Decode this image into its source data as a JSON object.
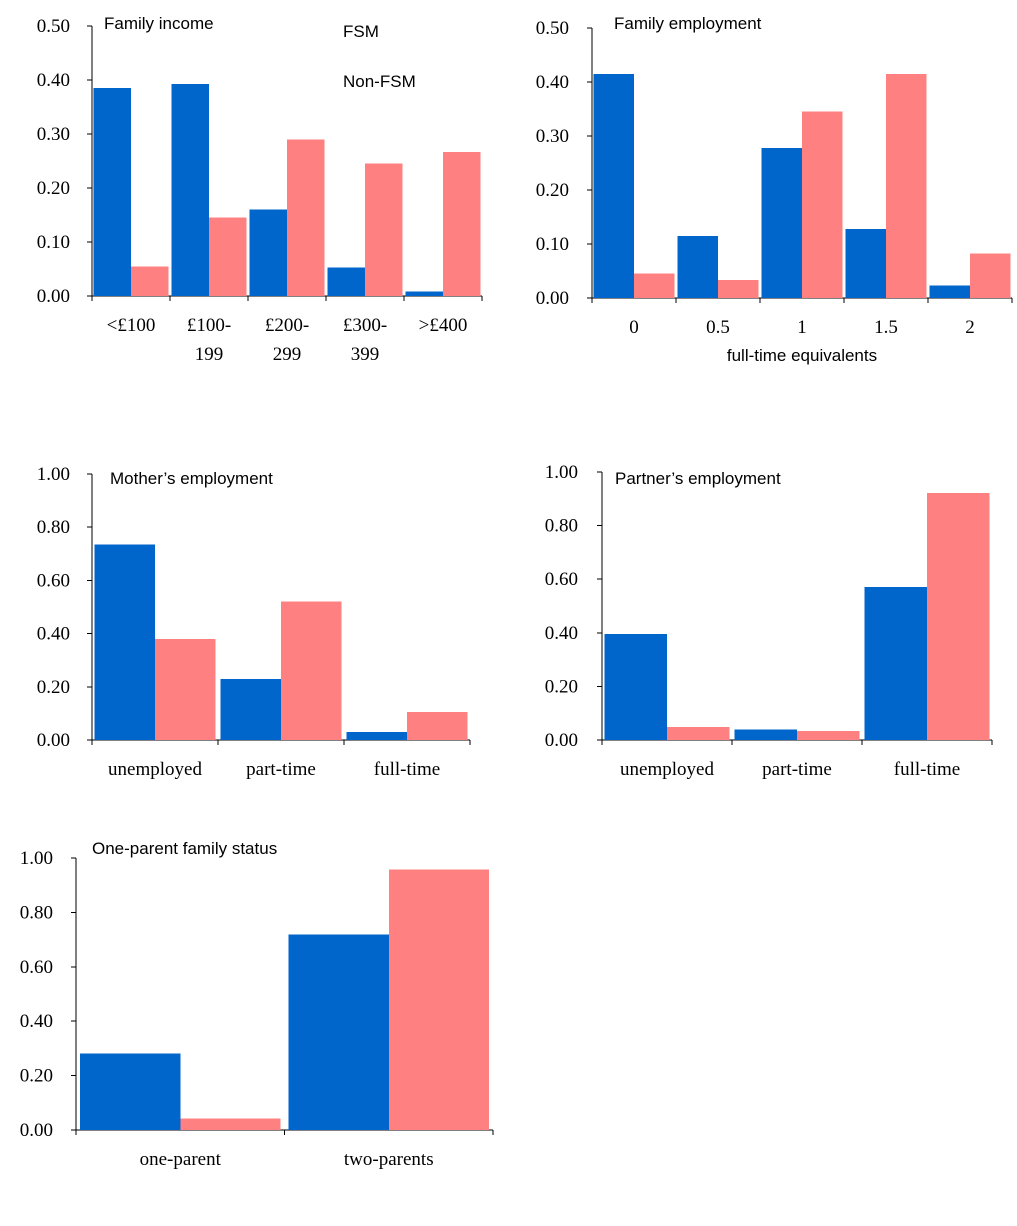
{
  "colors": {
    "fsm": "#0066cc",
    "non_fsm": "#ff8080",
    "axis": "#000000"
  },
  "legend": {
    "fsm": "FSM",
    "non_fsm": "Non-FSM"
  },
  "chart_data": [
    {
      "type": "bar",
      "title": "Family income",
      "categories": [
        [
          "<£100"
        ],
        [
          "£100-",
          "199"
        ],
        [
          "£200-",
          "299"
        ],
        [
          "£300-",
          "399"
        ],
        [
          ">£400"
        ]
      ],
      "series": [
        {
          "name": "FSM",
          "values": [
            0.385,
            0.393,
            0.16,
            0.053,
            0.008
          ]
        },
        {
          "name": "Non-FSM",
          "values": [
            0.055,
            0.145,
            0.29,
            0.245,
            0.267
          ]
        }
      ],
      "yticks": [
        "0.00",
        "0.10",
        "0.20",
        "0.30",
        "0.40",
        "0.50"
      ],
      "ylim": [
        0,
        0.5
      ],
      "xlabel": "",
      "ylabel": ""
    },
    {
      "type": "bar",
      "title": "Family employment",
      "categories": [
        [
          "0"
        ],
        [
          "0.5"
        ],
        [
          "1"
        ],
        [
          "1.5"
        ],
        [
          "2"
        ]
      ],
      "series": [
        {
          "name": "FSM",
          "values": [
            0.415,
            0.115,
            0.278,
            0.128,
            0.023
          ]
        },
        {
          "name": "Non-FSM",
          "values": [
            0.045,
            0.033,
            0.345,
            0.415,
            0.082
          ]
        }
      ],
      "yticks": [
        "0.00",
        "0.10",
        "0.20",
        "0.30",
        "0.40",
        "0.50"
      ],
      "ylim": [
        0,
        0.5
      ],
      "xlabel": "full-time equivalents",
      "ylabel": ""
    },
    {
      "type": "bar",
      "title": "Mother’s employment",
      "categories": [
        [
          "unemployed"
        ],
        [
          "part-time"
        ],
        [
          "full-time"
        ]
      ],
      "series": [
        {
          "name": "FSM",
          "values": [
            0.735,
            0.23,
            0.03
          ]
        },
        {
          "name": "Non-FSM",
          "values": [
            0.38,
            0.52,
            0.105
          ]
        }
      ],
      "yticks": [
        "0.00",
        "0.20",
        "0.40",
        "0.60",
        "0.80",
        "1.00"
      ],
      "ylim": [
        0,
        1
      ],
      "xlabel": "",
      "ylabel": ""
    },
    {
      "type": "bar",
      "title": "Partner’s employment",
      "categories": [
        [
          "unemployed"
        ],
        [
          "part-time"
        ],
        [
          "full-time"
        ]
      ],
      "series": [
        {
          "name": "FSM",
          "values": [
            0.395,
            0.04,
            0.57
          ]
        },
        {
          "name": "Non-FSM",
          "values": [
            0.048,
            0.033,
            0.922
          ]
        }
      ],
      "yticks": [
        "0.00",
        "0.20",
        "0.40",
        "0.60",
        "0.80",
        "1.00"
      ],
      "ylim": [
        0,
        1
      ],
      "xlabel": "",
      "ylabel": ""
    },
    {
      "type": "bar",
      "title": "One-parent family status",
      "categories": [
        [
          "one-parent"
        ],
        [
          "two-parents"
        ]
      ],
      "series": [
        {
          "name": "FSM",
          "values": [
            0.282,
            0.718
          ]
        },
        {
          "name": "Non-FSM",
          "values": [
            0.042,
            0.958
          ]
        }
      ],
      "yticks": [
        "0.00",
        "0.20",
        "0.40",
        "0.60",
        "0.80",
        "1.00"
      ],
      "ylim": [
        0,
        1
      ],
      "xlabel": "",
      "ylabel": ""
    }
  ]
}
